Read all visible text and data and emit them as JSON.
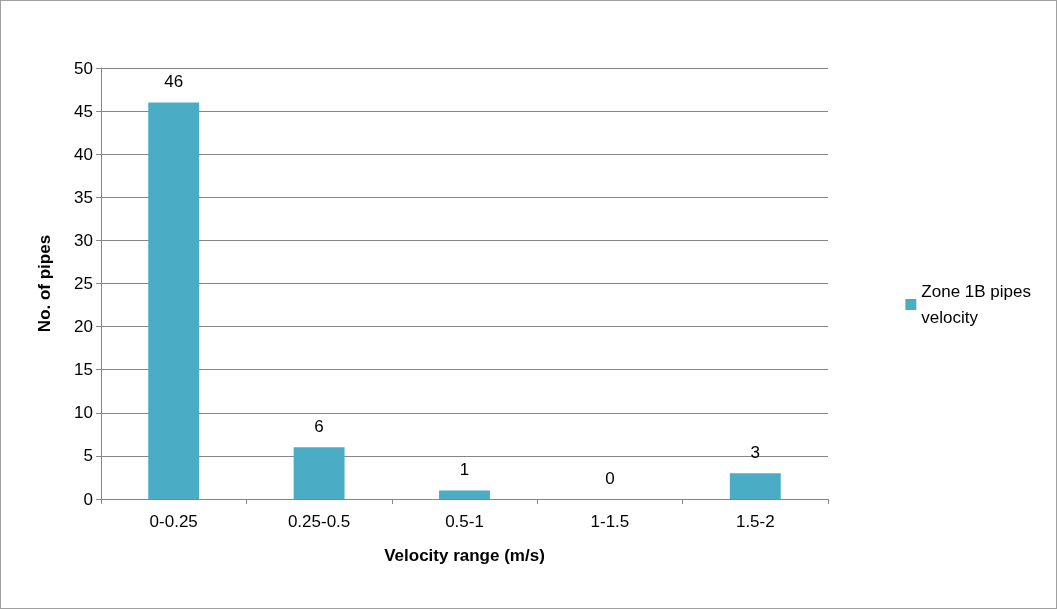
{
  "chart_data": {
    "type": "bar",
    "xlabel": "Velocity range (m/s)",
    "ylabel": "No. of pipes",
    "categories": [
      "0-0.25",
      "0.25-0.5",
      "0.5-1",
      "1-1.5",
      "1.5-2"
    ],
    "series": [
      {
        "name": "Zone 1B pipes velocity",
        "color": "#4bacc6",
        "values": [
          46,
          6,
          1,
          0,
          3
        ]
      }
    ],
    "ylim": [
      0,
      50
    ],
    "yticks": [
      0,
      5,
      10,
      15,
      20,
      25,
      30,
      35,
      40,
      45,
      50
    ],
    "grid": "y",
    "legend": "right",
    "data_labels": true
  }
}
